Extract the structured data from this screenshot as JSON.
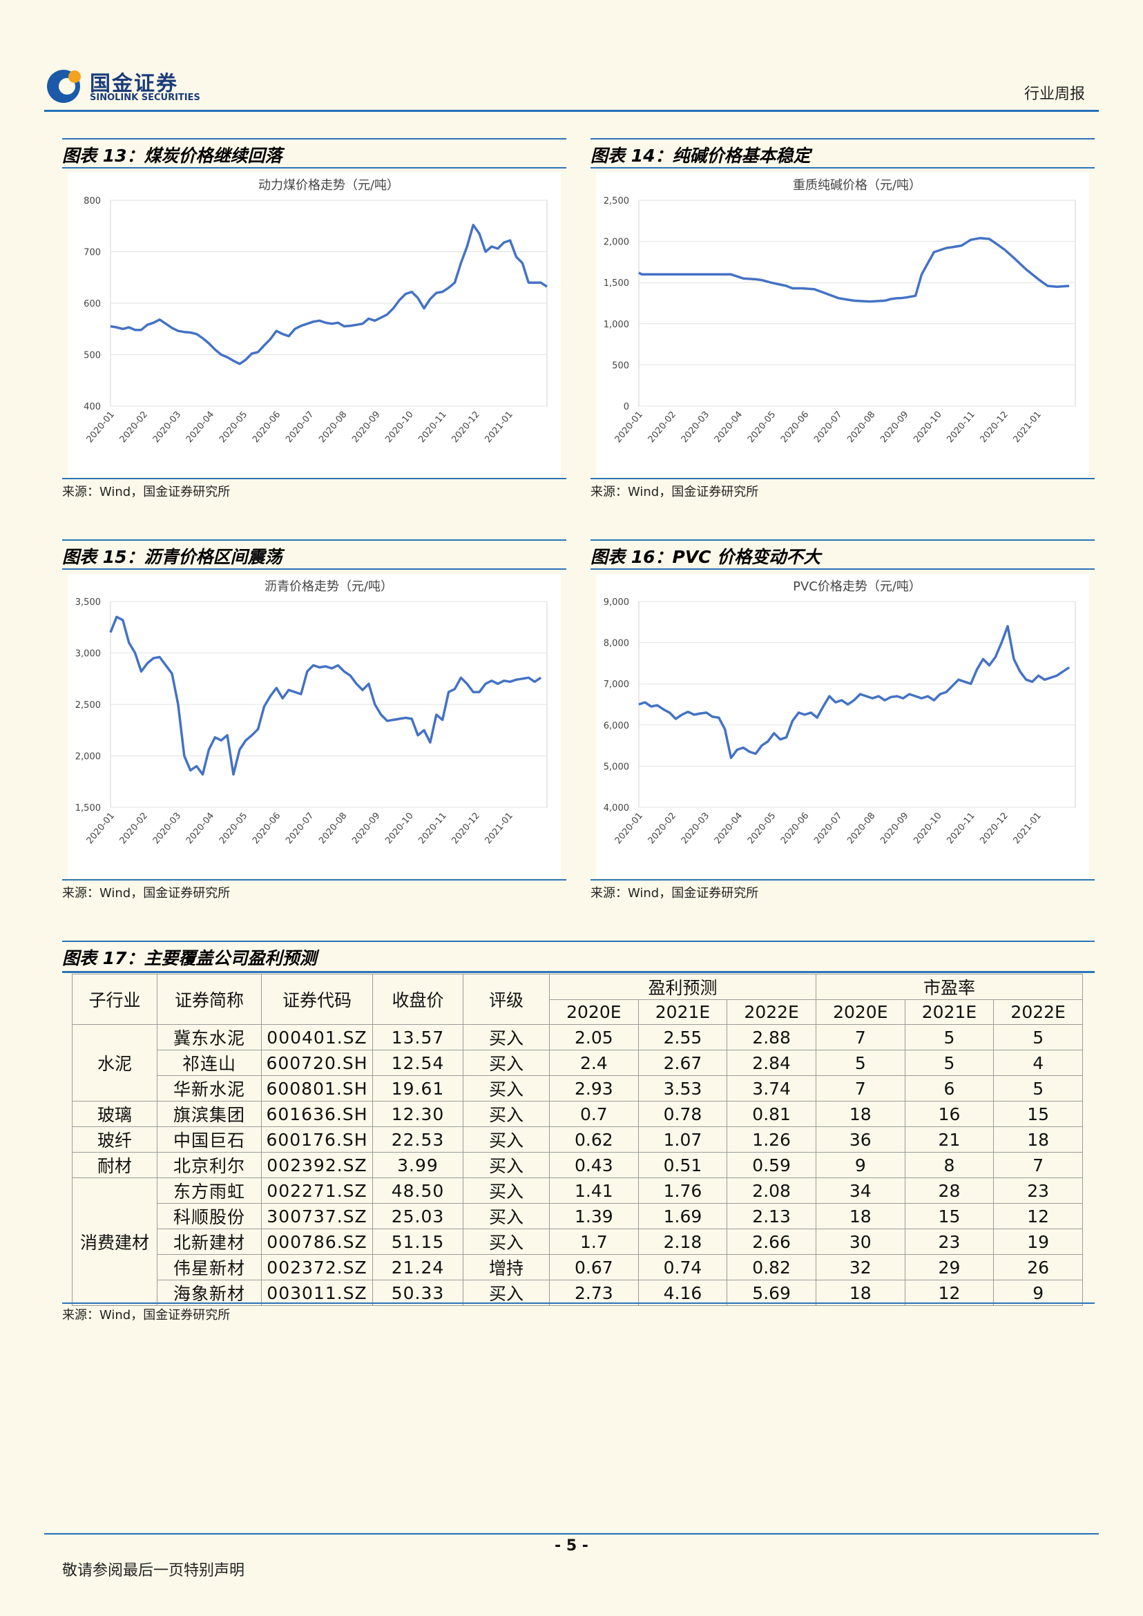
{
  "header": {
    "logo_cn": "国金证券",
    "logo_en": "SINOLINK SECURITIES",
    "report_type": "行业周报",
    "brand_color": "#1a3c7a",
    "accent_color": "#2470b8"
  },
  "charts": [
    {
      "label": "图表 13：煤炭价格继续回落",
      "source": "来源：Wind，国金证券研究所",
      "chart_data": {
        "type": "line",
        "title": "动力煤价格走势（元/吨）",
        "ylim": [
          400,
          800
        ],
        "yticks": [
          "800",
          "700",
          "600",
          "500",
          "400"
        ],
        "categories": [
          "2020-01",
          "2020-02",
          "2020-03",
          "2020-04",
          "2020-05",
          "2020-06",
          "2020-07",
          "2020-08",
          "2020-09",
          "2020-10",
          "2020-11",
          "2020-12",
          "2021-01"
        ],
        "series": [
          {
            "color": "#4472c4",
            "x": [
              0,
              0.2,
              0.4,
              0.6,
              0.8,
              1.0,
              1.2,
              1.4,
              1.6,
              1.8,
              2.0,
              2.2,
              2.4,
              2.6,
              2.8,
              3.0,
              3.2,
              3.4,
              3.6,
              3.8,
              4.0,
              4.2,
              4.4,
              4.6,
              4.8,
              5.0,
              5.2,
              5.4,
              5.6,
              5.8,
              6.0,
              6.2,
              6.4,
              6.6,
              6.8,
              7.0,
              7.2,
              7.4,
              7.6,
              7.8,
              8.0,
              8.2,
              8.4,
              8.6,
              8.8,
              9.0,
              9.2,
              9.4,
              9.6,
              9.8,
              10.0,
              10.2,
              10.4,
              10.6,
              10.8,
              11.0,
              11.2,
              11.4,
              11.6,
              11.8,
              12.0,
              12.2,
              12.4,
              12.6,
              12.8,
              13.0,
              13.2,
              13.4,
              13.6,
              13.8,
              14.0,
              14.2
            ],
            "values": [
              555,
              553,
              550,
              553,
              548,
              548,
              558,
              562,
              568,
              560,
              552,
              546,
              544,
              543,
              540,
              532,
              522,
              510,
              500,
              495,
              488,
              482,
              490,
              502,
              505,
              518,
              530,
              546,
              540,
              536,
              550,
              556,
              560,
              564,
              566,
              562,
              560,
              562,
              555,
              556,
              558,
              560,
              570,
              566,
              572,
              578,
              590,
              606,
              618,
              622,
              610,
              590,
              608,
              620,
              622,
              630,
              640,
              678,
              710,
              752,
              735,
              700,
              710,
              706,
              718,
              722,
              690,
              678,
              640,
              640,
              640,
              632
            ]
          }
        ]
      }
    },
    {
      "label": "图表 14：纯碱价格基本稳定",
      "source": "来源：Wind，国金证券研究所",
      "chart_data": {
        "type": "line",
        "title": "重质纯碱价格（元/吨）",
        "ylim": [
          0,
          2500
        ],
        "yticks": [
          "2,500",
          "2,000",
          "1,500",
          "1,000",
          "500",
          "0"
        ],
        "categories": [
          "2020-01",
          "2020-02",
          "2020-03",
          "2020-04",
          "2020-05",
          "2020-06",
          "2020-07",
          "2020-08",
          "2020-09",
          "2020-10",
          "2020-11",
          "2020-12",
          "2021-01"
        ],
        "series": [
          {
            "color": "#4472c4",
            "x": [
              0,
              0.1,
              1.0,
              2.0,
              2.7,
              3.0,
              3.4,
              3.8,
              4.0,
              4.3,
              4.8,
              5.0,
              5.3,
              5.7,
              6.0,
              6.5,
              7.0,
              7.5,
              8.0,
              8.2,
              8.4,
              8.5,
              8.7,
              9.0,
              9.2,
              9.6,
              10.0,
              10.2,
              10.5,
              10.8,
              11.1,
              11.4,
              11.6,
              11.9,
              12.2,
              12.6,
              13.0,
              13.3,
              13.6,
              14.0
            ],
            "values": [
              1620,
              1600,
              1600,
              1600,
              1600,
              1600,
              1550,
              1540,
              1530,
              1500,
              1460,
              1430,
              1430,
              1420,
              1380,
              1310,
              1280,
              1270,
              1280,
              1300,
              1310,
              1310,
              1320,
              1340,
              1600,
              1870,
              1920,
              1930,
              1950,
              2020,
              2040,
              2030,
              1980,
              1900,
              1800,
              1660,
              1540,
              1460,
              1450,
              1460
            ]
          }
        ]
      }
    },
    {
      "label": "图表 15：沥青价格区间震荡",
      "source": "来源：Wind，国金证券研究所",
      "chart_data": {
        "type": "line",
        "title": "沥青价格走势（元/吨）",
        "ylim": [
          1500,
          3500
        ],
        "yticks": [
          "3,500",
          "3,000",
          "2,500",
          "2,000",
          "1,500"
        ],
        "categories": [
          "2020-01",
          "2020-02",
          "2020-03",
          "2020-04",
          "2020-05",
          "2020-06",
          "2020-07",
          "2020-08",
          "2020-09",
          "2020-10",
          "2020-11",
          "2020-12",
          "2021-01"
        ],
        "series": [
          {
            "color": "#4472c4",
            "x": [
              0,
              0.2,
              0.4,
              0.6,
              0.8,
              1.0,
              1.2,
              1.4,
              1.6,
              1.8,
              2.0,
              2.2,
              2.4,
              2.6,
              2.8,
              3.0,
              3.2,
              3.4,
              3.6,
              3.8,
              4.0,
              4.2,
              4.4,
              4.6,
              4.8,
              5.0,
              5.2,
              5.4,
              5.6,
              5.8,
              6.0,
              6.2,
              6.4,
              6.6,
              6.8,
              7.0,
              7.2,
              7.4,
              7.6,
              7.8,
              8.0,
              8.2,
              8.4,
              8.6,
              8.8,
              9.0,
              9.2,
              9.4,
              9.6,
              9.8,
              10.0,
              10.2,
              10.4,
              10.6,
              10.8,
              11.0,
              11.2,
              11.4,
              11.6,
              11.8,
              12.0,
              12.2,
              12.4,
              12.6,
              12.8,
              13.0,
              13.2,
              13.4,
              13.6,
              13.8,
              14.0
            ],
            "values": [
              3200,
              3350,
              3320,
              3100,
              3000,
              2820,
              2900,
              2950,
              2960,
              2880,
              2800,
              2500,
              2000,
              1860,
              1900,
              1820,
              2060,
              2180,
              2150,
              2200,
              1820,
              2060,
              2150,
              2200,
              2260,
              2480,
              2580,
              2660,
              2560,
              2640,
              2620,
              2600,
              2820,
              2880,
              2860,
              2870,
              2850,
              2880,
              2820,
              2780,
              2700,
              2640,
              2700,
              2500,
              2400,
              2340,
              2350,
              2360,
              2370,
              2360,
              2200,
              2250,
              2130,
              2400,
              2350,
              2620,
              2650,
              2760,
              2700,
              2620,
              2620,
              2700,
              2730,
              2700,
              2730,
              2720,
              2740,
              2750,
              2760,
              2720,
              2760
            ]
          }
        ]
      }
    },
    {
      "label": "图表 16：PVC 价格变动不大",
      "source": "来源：Wind，国金证券研究所",
      "chart_data": {
        "type": "line",
        "title": "PVC价格走势（元/吨）",
        "ylim": [
          4000,
          9000
        ],
        "yticks": [
          "9,000",
          "8,000",
          "7,000",
          "6,000",
          "5,000",
          "4,000"
        ],
        "categories": [
          "2020-01",
          "2020-02",
          "2020-03",
          "2020-04",
          "2020-05",
          "2020-06",
          "2020-07",
          "2020-08",
          "2020-09",
          "2020-10",
          "2020-11",
          "2020-12",
          "2021-01"
        ],
        "series": [
          {
            "color": "#4472c4",
            "x": [
              0,
              0.2,
              0.4,
              0.6,
              0.8,
              1.0,
              1.2,
              1.4,
              1.6,
              1.8,
              2.0,
              2.2,
              2.4,
              2.6,
              2.8,
              3.0,
              3.2,
              3.4,
              3.6,
              3.8,
              4.0,
              4.2,
              4.4,
              4.6,
              4.8,
              5.0,
              5.2,
              5.4,
              5.6,
              5.8,
              6.0,
              6.2,
              6.4,
              6.6,
              6.8,
              7.0,
              7.2,
              7.4,
              7.6,
              7.8,
              8.0,
              8.2,
              8.4,
              8.6,
              8.8,
              9.0,
              9.2,
              9.4,
              9.6,
              9.8,
              10.0,
              10.2,
              10.4,
              10.6,
              10.8,
              11.0,
              11.2,
              11.4,
              11.6,
              11.8,
              12.0,
              12.2,
              12.4,
              12.6,
              12.8,
              13.0,
              13.2,
              13.4,
              13.6,
              13.8,
              14.0
            ],
            "values": [
              6500,
              6550,
              6450,
              6480,
              6380,
              6300,
              6150,
              6250,
              6320,
              6250,
              6280,
              6300,
              6200,
              6180,
              5900,
              5200,
              5400,
              5450,
              5350,
              5300,
              5500,
              5600,
              5800,
              5650,
              5700,
              6100,
              6300,
              6250,
              6300,
              6180,
              6450,
              6700,
              6550,
              6600,
              6500,
              6600,
              6750,
              6700,
              6650,
              6700,
              6600,
              6680,
              6700,
              6650,
              6750,
              6700,
              6650,
              6700,
              6600,
              6750,
              6800,
              6950,
              7100,
              7050,
              7000,
              7350,
              7600,
              7450,
              7650,
              8000,
              8400,
              7600,
              7300,
              7100,
              7050,
              7200,
              7100,
              7150,
              7200,
              7300,
              7400
            ]
          }
        ]
      }
    }
  ],
  "table": {
    "label": "图表 17：主要覆盖公司盈利预测",
    "source": "来源：Wind，国金证券研究所",
    "headers": {
      "sub_industry": "子行业",
      "name": "证券简称",
      "code": "证券代码",
      "close": "收盘价",
      "rating": "评级",
      "eps_group": "盈利预测",
      "pe_group": "市盈率",
      "eps_2020": "2020E",
      "eps_2021": "2021E",
      "eps_2022": "2022E",
      "pe_2020": "2020E",
      "pe_2021": "2021E",
      "pe_2022": "2022E"
    },
    "groups": [
      {
        "name": "水泥",
        "rows": [
          [
            "冀东水泥",
            "000401.SZ",
            "13.57",
            "买入",
            "2.05",
            "2.55",
            "2.88",
            "7",
            "5",
            "5"
          ],
          [
            "祁连山",
            "600720.SH",
            "12.54",
            "买入",
            "2.4",
            "2.67",
            "2.84",
            "5",
            "5",
            "4"
          ],
          [
            "华新水泥",
            "600801.SH",
            "19.61",
            "买入",
            "2.93",
            "3.53",
            "3.74",
            "7",
            "6",
            "5"
          ]
        ]
      },
      {
        "name": "玻璃",
        "rows": [
          [
            "旗滨集团",
            "601636.SH",
            "12.30",
            "买入",
            "0.7",
            "0.78",
            "0.81",
            "18",
            "16",
            "15"
          ]
        ]
      },
      {
        "name": "玻纤",
        "rows": [
          [
            "中国巨石",
            "600176.SH",
            "22.53",
            "买入",
            "0.62",
            "1.07",
            "1.26",
            "36",
            "21",
            "18"
          ]
        ]
      },
      {
        "name": "耐材",
        "rows": [
          [
            "北京利尔",
            "002392.SZ",
            "3.99",
            "买入",
            "0.43",
            "0.51",
            "0.59",
            "9",
            "8",
            "7"
          ]
        ]
      },
      {
        "name": "消费建材",
        "rows": [
          [
            "东方雨虹",
            "002271.SZ",
            "48.50",
            "买入",
            "1.41",
            "1.76",
            "2.08",
            "34",
            "28",
            "23"
          ],
          [
            "科顺股份",
            "300737.SZ",
            "25.03",
            "买入",
            "1.39",
            "1.69",
            "2.13",
            "18",
            "15",
            "12"
          ],
          [
            "北新建材",
            "000786.SZ",
            "51.15",
            "买入",
            "1.7",
            "2.18",
            "2.66",
            "30",
            "23",
            "19"
          ],
          [
            "伟星新材",
            "002372.SZ",
            "21.24",
            "增持",
            "0.67",
            "0.74",
            "0.82",
            "32",
            "29",
            "26"
          ],
          [
            "海象新材",
            "003011.SZ",
            "50.33",
            "买入",
            "2.73",
            "4.16",
            "5.69",
            "18",
            "12",
            "9"
          ]
        ]
      }
    ]
  },
  "footer": {
    "page_number": "- 5 -",
    "disclaimer": "敬请参阅最后一页特别声明"
  }
}
